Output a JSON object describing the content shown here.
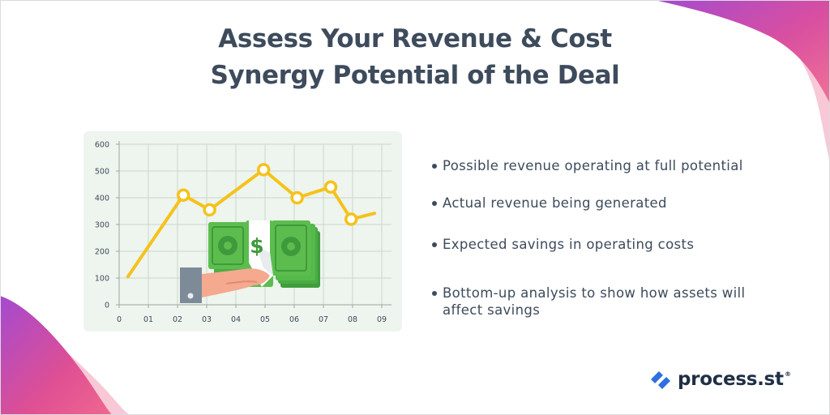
{
  "title": {
    "line1": "Assess Your Revenue & Cost",
    "line2": "Synergy Potential of the Deal"
  },
  "bullets": [
    {
      "text": "Possible revenue operating at full potential"
    },
    {
      "text": "Actual revenue being generated"
    },
    {
      "text": "Expected savings in operating costs"
    },
    {
      "text": "Bottom-up analysis to show how assets will affect savings"
    }
  ],
  "logo": {
    "name": "process.st",
    "mark": "reg"
  },
  "illustration": {
    "currency_symbol": "$",
    "icons": [
      "money-stack-icon",
      "hand-icon"
    ]
  },
  "colors": {
    "title": "#3d4b5c",
    "accent_pink": "#e6548a",
    "accent_purple": "#a44ad0",
    "line": "#f5c21b",
    "money_green": "#5cbd4e",
    "logo_blue": "#2f6fe0"
  },
  "chart_data": {
    "type": "line",
    "x": [
      "0",
      "01",
      "02",
      "03",
      "04",
      "05",
      "06",
      "07",
      "08",
      "09"
    ],
    "yticks": [
      "0",
      "100",
      "200",
      "300",
      "400",
      "500",
      "600"
    ],
    "ylim": [
      0,
      600
    ],
    "grid": true,
    "series": [
      {
        "points": [
          {
            "x": 0.3,
            "y": 105
          },
          {
            "x": 2.2,
            "y": 410
          },
          {
            "x": 3.1,
            "y": 355
          },
          {
            "x": 4.95,
            "y": 505
          },
          {
            "x": 6.1,
            "y": 400
          },
          {
            "x": 7.25,
            "y": 440
          },
          {
            "x": 7.95,
            "y": 320
          },
          {
            "x": 8.75,
            "y": 342
          }
        ],
        "markers": [
          false,
          true,
          true,
          true,
          true,
          true,
          true,
          false
        ]
      }
    ]
  }
}
